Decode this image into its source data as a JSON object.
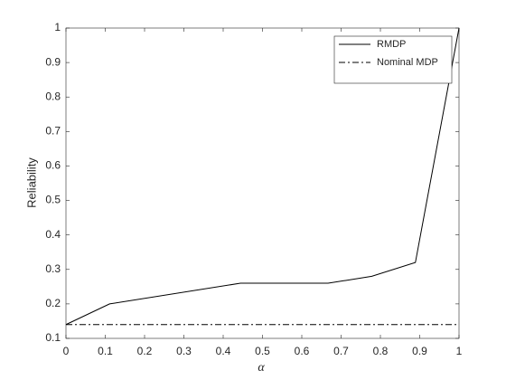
{
  "chart_data": {
    "type": "line",
    "x": [
      0,
      0.111,
      0.444,
      0.667,
      0.778,
      0.889,
      1
    ],
    "series": [
      {
        "name": "RMDP",
        "color": "#000000",
        "linestyle": "solid",
        "values": [
          0.14,
          0.2,
          0.26,
          0.26,
          0.28,
          0.32,
          1
        ]
      },
      {
        "name": "Nominal MDP",
        "color": "#000000",
        "linestyle": "dashdot",
        "values": [
          0.14,
          0.14,
          0.14,
          0.14,
          0.14,
          0.14,
          0.14
        ]
      }
    ],
    "xlabel": "α",
    "ylabel": "Reliability",
    "xlim": [
      0,
      1
    ],
    "xticks": [
      0,
      0.1,
      0.2,
      0.3,
      0.4,
      0.5,
      0.6,
      0.7,
      0.8,
      0.9,
      1
    ],
    "ylim": [
      0.1,
      1
    ],
    "yticks": [
      0.1,
      0.2,
      0.3,
      0.4,
      0.5,
      0.6,
      0.7,
      0.8,
      0.9,
      1
    ],
    "grid": false,
    "legend": "top-right"
  }
}
